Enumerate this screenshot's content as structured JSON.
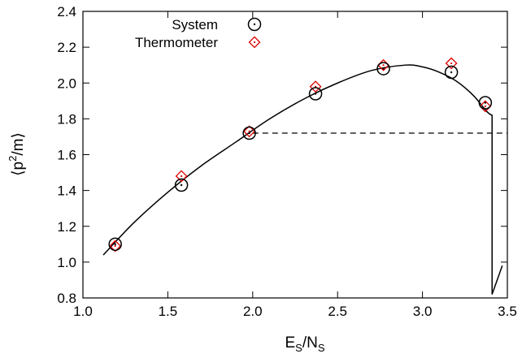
{
  "chart_data": {
    "type": "scatter",
    "xlabel": {
      "main": "E",
      "sub1": "S",
      "mid": "/N",
      "sub2": "S"
    },
    "ylabel": {
      "open": "⟨p",
      "sup": "2",
      "close": "/m⟩"
    },
    "xlim": [
      1.0,
      3.5
    ],
    "ylim": [
      0.8,
      2.4
    ],
    "x_ticks": [
      1.0,
      1.5,
      2.0,
      2.5,
      3.0,
      3.5
    ],
    "x_tick_labels": [
      "1.0",
      "1.5",
      "2.0",
      "2.5",
      "3.0",
      "3.5"
    ],
    "y_ticks": [
      0.8,
      1.0,
      1.2,
      1.4,
      1.6,
      1.8,
      2.0,
      2.2,
      2.4
    ],
    "y_tick_labels": [
      "0.8",
      "1.0",
      "1.2",
      "1.4",
      "1.6",
      "1.8",
      "2.0",
      "2.2",
      "2.4"
    ],
    "grid": false,
    "legend_position": "top-left",
    "series": [
      {
        "name": "System",
        "marker": "circle-dot",
        "color": "#000000",
        "x": [
          1.19,
          1.58,
          1.98,
          2.37,
          2.77,
          3.17,
          3.37
        ],
        "y": [
          1.1,
          1.43,
          1.72,
          1.94,
          2.08,
          2.06,
          1.89
        ]
      },
      {
        "name": "Thermometer",
        "marker": "diamond-dot",
        "color": "#dd0000",
        "x": [
          1.19,
          1.58,
          1.98,
          2.37,
          2.77,
          3.17,
          3.37
        ],
        "y": [
          1.09,
          1.48,
          1.73,
          1.98,
          2.1,
          2.11,
          1.87
        ]
      }
    ],
    "curve": {
      "style": "solid",
      "color": "#000000",
      "x": [
        1.12,
        1.3,
        1.5,
        1.7,
        1.9,
        2.1,
        2.3,
        2.5,
        2.7,
        2.9,
        3.0,
        3.1,
        3.2,
        3.3,
        3.38,
        3.41,
        3.41,
        3.41,
        3.47
      ],
      "y": [
        1.04,
        1.22,
        1.39,
        1.54,
        1.67,
        1.8,
        1.91,
        2.0,
        2.07,
        2.1,
        2.09,
        2.06,
        2.01,
        1.93,
        1.84,
        1.82,
        1.0,
        0.82,
        0.98
      ]
    },
    "reference_line": {
      "style": "dashed",
      "color": "#000000",
      "y": 1.72,
      "x_from": 2.0,
      "x_to": 3.5
    }
  }
}
